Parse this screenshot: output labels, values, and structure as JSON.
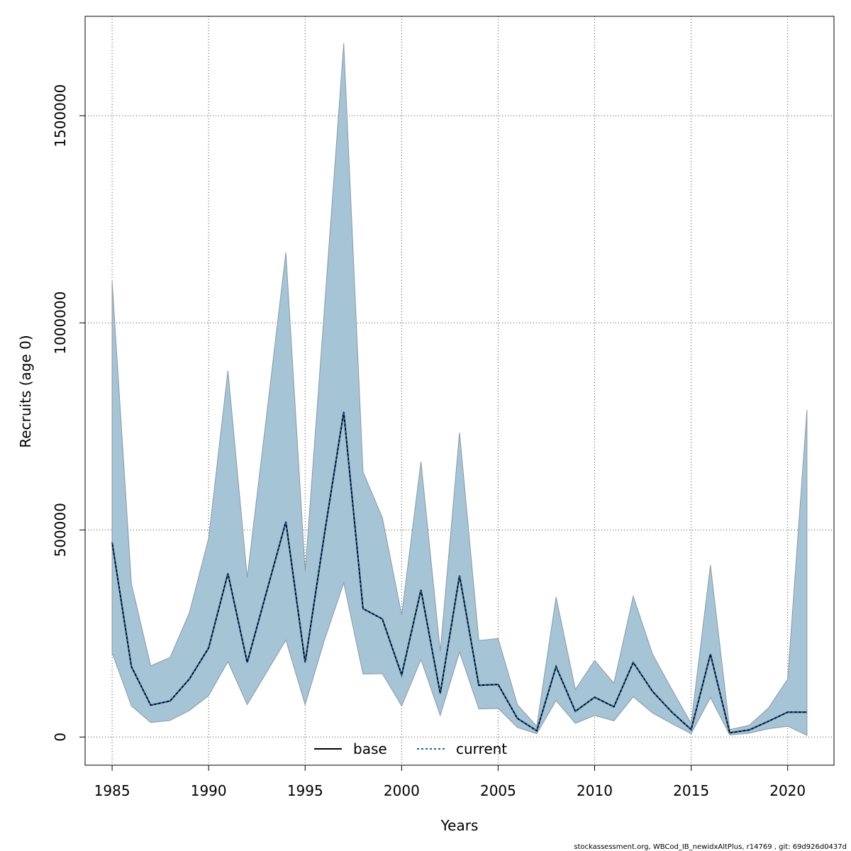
{
  "chart_data": {
    "type": "line",
    "xlabel": "Years",
    "ylabel": "Recruits (age 0)",
    "xlim": [
      1983.6,
      2022.4
    ],
    "ylim": [
      -68000,
      1740000
    ],
    "x_ticks": [
      1985,
      1990,
      1995,
      2000,
      2005,
      2010,
      2015,
      2020
    ],
    "y_ticks": [
      0,
      500000,
      1000000,
      1500000
    ],
    "y_tick_labels": [
      "0",
      "500000",
      "1000000",
      "1500000"
    ],
    "grid": true,
    "legend": {
      "placement": "bottom-center",
      "entries": [
        "base",
        "current"
      ]
    },
    "colors": {
      "band": "#a5c4d6",
      "band_edge": "#8a9aa4",
      "base": "#000000",
      "current": "#1f5f9f",
      "grid": "#444444"
    },
    "x": [
      1985,
      1986,
      1987,
      1988,
      1989,
      1990,
      1991,
      1992,
      1993,
      1994,
      1995,
      1996,
      1997,
      1998,
      1999,
      2000,
      2001,
      2002,
      2003,
      2004,
      2005,
      2006,
      2007,
      2008,
      2009,
      2010,
      2011,
      2012,
      2013,
      2014,
      2015,
      2016,
      2017,
      2018,
      2019,
      2020,
      2021
    ],
    "series": [
      {
        "name": "base",
        "style": "solid",
        "values": [
          470000,
          170000,
          77000,
          87000,
          140000,
          215000,
          395000,
          180000,
          350000,
          520000,
          180000,
          490000,
          785000,
          310000,
          285000,
          150000,
          355000,
          105000,
          390000,
          125000,
          127000,
          45000,
          15000,
          170000,
          62000,
          96000,
          73000,
          180000,
          110000,
          60000,
          18000,
          200000,
          10000,
          17000,
          38000,
          60000,
          60000
        ]
      },
      {
        "name": "current",
        "style": "dashed",
        "values": [
          470000,
          170000,
          77000,
          87000,
          140000,
          215000,
          395000,
          180000,
          350000,
          520000,
          180000,
          490000,
          785000,
          310000,
          285000,
          150000,
          355000,
          105000,
          390000,
          125000,
          127000,
          45000,
          15000,
          170000,
          62000,
          96000,
          73000,
          180000,
          110000,
          60000,
          18000,
          200000,
          10000,
          17000,
          38000,
          60000,
          60000
        ]
      }
    ],
    "band": {
      "lower": [
        203000,
        75000,
        35000,
        40000,
        64000,
        100000,
        182000,
        78000,
        156000,
        234000,
        78000,
        234000,
        372000,
        152000,
        153000,
        75000,
        187000,
        52000,
        205000,
        68000,
        69000,
        23000,
        8000,
        88000,
        33000,
        52000,
        39000,
        97000,
        58000,
        32000,
        8000,
        95000,
        5000,
        9000,
        20000,
        26000,
        4000
      ],
      "upper": [
        1100000,
        370000,
        172000,
        192000,
        300000,
        480000,
        885000,
        385000,
        775000,
        1170000,
        400000,
        1035000,
        1675000,
        640000,
        530000,
        295000,
        665000,
        207000,
        735000,
        233000,
        238000,
        78000,
        26000,
        338000,
        115000,
        185000,
        130000,
        340000,
        200000,
        115000,
        33000,
        415000,
        18000,
        28000,
        70000,
        140000,
        790000
      ]
    }
  },
  "footer": "stockassessment.org, WBCod_IB_newidxAltPlus, r14769 , git: 69d926d0437d"
}
